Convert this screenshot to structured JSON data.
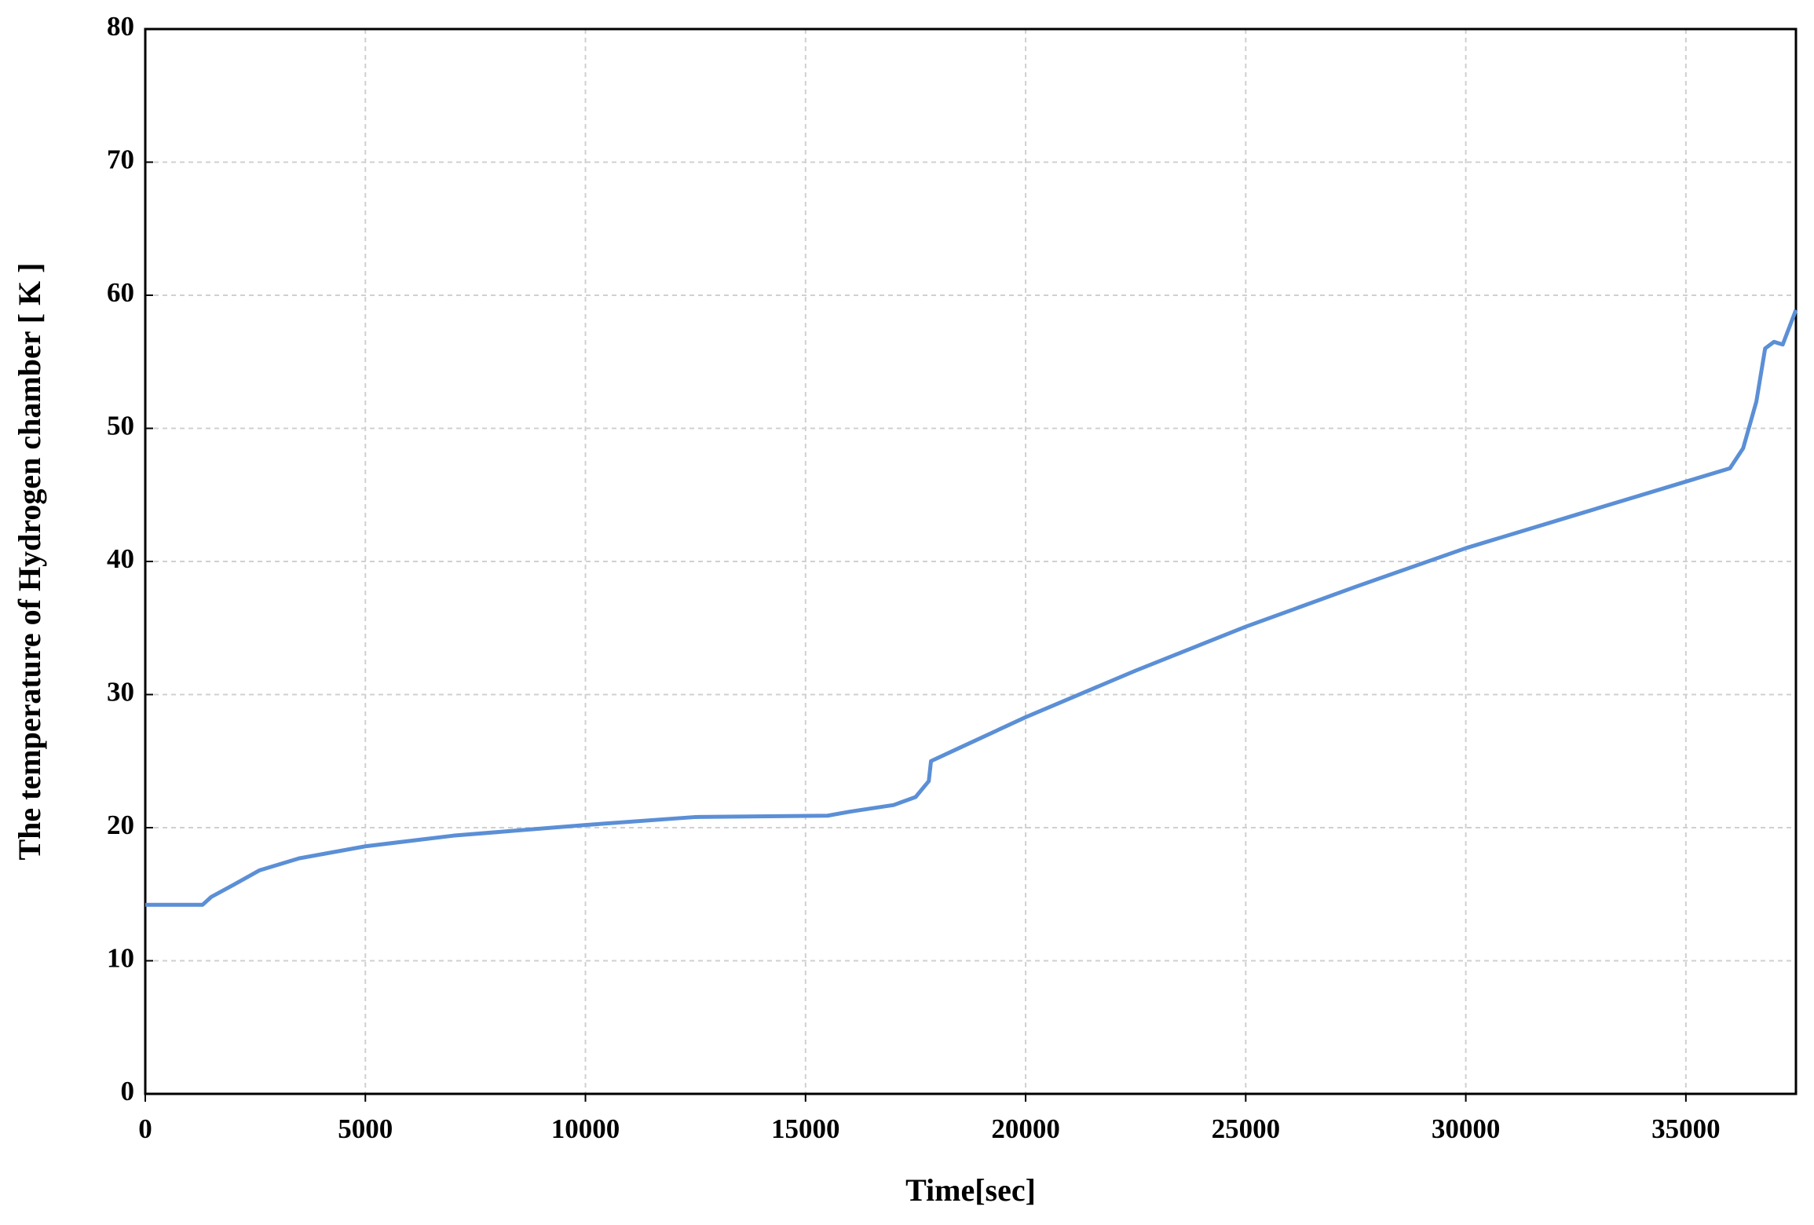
{
  "chart_data": {
    "type": "line",
    "x_label": "Time[sec]",
    "y_label": "The temperature of Hydrogen chamber [ K ]",
    "x": [
      0,
      1300,
      1500,
      2000,
      2600,
      3500,
      5000,
      7000,
      10000,
      12500,
      15500,
      16000,
      17000,
      17500,
      17800,
      17850,
      18500,
      20000,
      22500,
      25000,
      27500,
      30000,
      32500,
      35000,
      36000,
      36300,
      36600,
      36800,
      37000,
      37200,
      37500
    ],
    "series": [
      {
        "color": "#5b8fd6",
        "values": [
          14.2,
          14.2,
          14.8,
          15.7,
          16.8,
          17.7,
          18.6,
          19.4,
          20.2,
          20.8,
          20.9,
          21.2,
          21.7,
          22.3,
          23.5,
          25.0,
          26.0,
          28.3,
          31.8,
          35.1,
          38.1,
          41.0,
          43.5,
          46.0,
          47.0,
          48.5,
          52.0,
          56.0,
          56.5,
          56.3,
          58.9
        ]
      }
    ],
    "xlim": [
      0,
      37500
    ],
    "ylim": [
      0,
      80
    ],
    "xticks": [
      0,
      5000,
      10000,
      15000,
      20000,
      25000,
      30000,
      35000
    ],
    "yticks": [
      0,
      10,
      20,
      30,
      40,
      50,
      60,
      70,
      80
    ],
    "grid": true
  }
}
